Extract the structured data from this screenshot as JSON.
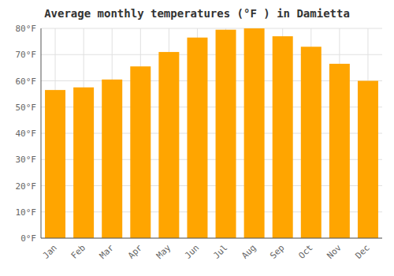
{
  "chart_data": {
    "type": "bar",
    "title": "Average monthly temperatures (°F ) in Damietta",
    "categories": [
      "Jan",
      "Feb",
      "Mar",
      "Apr",
      "May",
      "Jun",
      "Jul",
      "Aug",
      "Sep",
      "Oct",
      "Nov",
      "Dec"
    ],
    "values": [
      56.5,
      57.5,
      60.5,
      65.5,
      71,
      76.5,
      79.5,
      80,
      77,
      73,
      66.5,
      60
    ],
    "color": "#FFA500",
    "ylim": [
      0,
      80
    ],
    "yticks": [
      {
        "value": 0,
        "label": "0°F"
      },
      {
        "value": 10,
        "label": "10°F"
      },
      {
        "value": 20,
        "label": "20°F"
      },
      {
        "value": 30,
        "label": "30°F"
      },
      {
        "value": 40,
        "label": "40°F"
      },
      {
        "value": 50,
        "label": "50°F"
      },
      {
        "value": 60,
        "label": "60°F"
      },
      {
        "value": 70,
        "label": "70°F"
      },
      {
        "value": 80,
        "label": "80°F"
      }
    ],
    "grid": true
  }
}
